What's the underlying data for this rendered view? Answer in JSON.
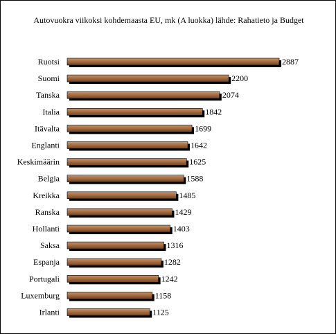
{
  "chart_data": {
    "type": "bar",
    "orientation": "horizontal",
    "title": "Autovuokra viikoksi kohdemaasta EU, mk (A luokka) lähde: Rahatieto ja Budget",
    "xlabel": "",
    "ylabel": "",
    "grid": false,
    "legend": "none",
    "categories": [
      "Ruotsi",
      "Suomi",
      "Tanska",
      "Italia",
      "Itävalta",
      "Englanti",
      "Keskimäärin",
      "Belgia",
      "Kreikka",
      "Ranska",
      "Hollanti",
      "Saksa",
      "Espanja",
      "Portugali",
      "Luxemburg",
      "Irlanti"
    ],
    "values": [
      2887,
      2200,
      2074,
      1842,
      1699,
      1642,
      1625,
      1588,
      1485,
      1429,
      1403,
      1316,
      1282,
      1242,
      1158,
      1125
    ],
    "colors": {
      "bar_light": "#c8936a",
      "bar_mid": "#a86f43",
      "bar_dark": "#6e4325",
      "bar_shadow": "#000000"
    }
  }
}
